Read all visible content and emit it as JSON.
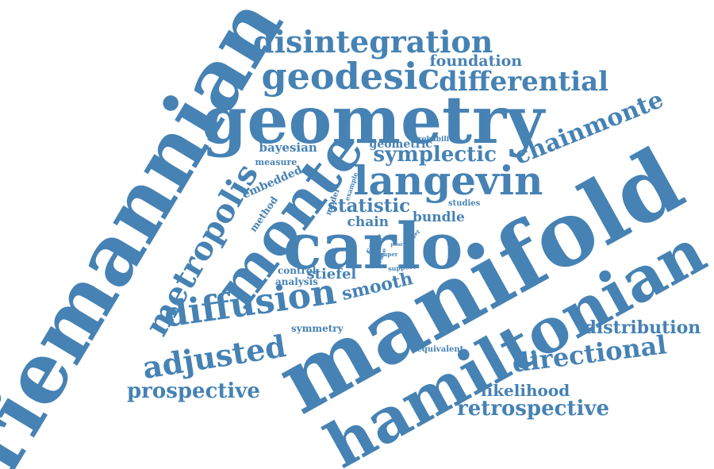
{
  "color": "#4682b4",
  "words": [
    "riemannian",
    "manifold",
    "hamiltonian",
    "geometry",
    "monte",
    "carlo",
    "langevin",
    "geodesic",
    "disintegration",
    "differential",
    "metropolis",
    "diffusion",
    "adjusted",
    "directional",
    "retrospective",
    "prospective",
    "distribution",
    "chainmonte",
    "symplectic",
    "likelihood",
    "foundation",
    "smooth",
    "statistic",
    "bayesian",
    "stiefel",
    "bundle",
    "chain",
    "geometric",
    "embedded",
    "analysis",
    "control",
    "symmetry",
    "method",
    "measure",
    "probability",
    "studies",
    "model",
    "fiber",
    "equivalent",
    "example",
    "support",
    "case",
    "target",
    "paper",
    "poor",
    "time"
  ]
}
